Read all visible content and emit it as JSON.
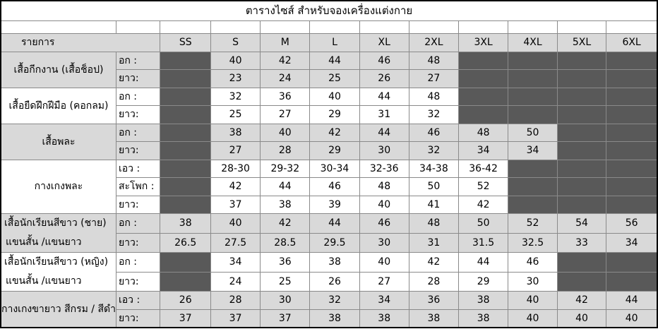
{
  "title": "ตารางไซส์ สำหรับจองเครื่องแต่งกาย",
  "header": {
    "item_label": "รายการ",
    "sizes": [
      "SS",
      "S",
      "M",
      "L",
      "XL",
      "2XL",
      "3XL",
      "4XL",
      "5XL",
      "6XL"
    ]
  },
  "groups": [
    {
      "name": "เสื้อกีกงาน (เสื้อช็อป)",
      "rows": [
        {
          "label": "อก :",
          "values": [
            null,
            "40",
            "42",
            "44",
            "46",
            "48",
            null,
            null,
            null,
            null
          ]
        },
        {
          "label": "ยาว:",
          "values": [
            null,
            "23",
            "24",
            "25",
            "26",
            "27",
            null,
            null,
            null,
            null
          ]
        }
      ]
    },
    {
      "name": "เสื้อยืดฝึกฝีมือ (คอกลม)",
      "rows": [
        {
          "label": "อก :",
          "values": [
            null,
            "32",
            "36",
            "40",
            "44",
            "48",
            null,
            null,
            null,
            null
          ]
        },
        {
          "label": "ยาว:",
          "values": [
            null,
            "25",
            "27",
            "29",
            "31",
            "32",
            null,
            null,
            null,
            null
          ]
        }
      ]
    },
    {
      "name": "เสื้อพละ",
      "rows": [
        {
          "label": "อก :",
          "values": [
            null,
            "38",
            "40",
            "42",
            "44",
            "46",
            "48",
            "50",
            null,
            null
          ]
        },
        {
          "label": "ยาว:",
          "values": [
            null,
            "27",
            "28",
            "29",
            "30",
            "32",
            "34",
            "34",
            null,
            null
          ]
        }
      ]
    },
    {
      "name": "กางเกงพละ",
      "rows": [
        {
          "label": "เอว :",
          "values": [
            null,
            "28-30",
            "29-32",
            "30-34",
            "32-36",
            "34-38",
            "36-42",
            null,
            null,
            null
          ]
        },
        {
          "label": "สะโพก :",
          "values": [
            null,
            "42",
            "44",
            "46",
            "48",
            "50",
            "52",
            null,
            null,
            null
          ]
        },
        {
          "label": "ยาว:",
          "values": [
            null,
            "37",
            "38",
            "39",
            "40",
            "41",
            "42",
            null,
            null,
            null
          ]
        }
      ]
    },
    {
      "name_line1": "เสื้อนักเรียนสีขาว (ชาย)",
      "name_line2": "แขนสั้น /แขนยาว",
      "rows": [
        {
          "label": "อก :",
          "values": [
            "38",
            "40",
            "42",
            "44",
            "46",
            "48",
            "50",
            "52",
            "54",
            "56"
          ]
        },
        {
          "label": "ยาว:",
          "values": [
            "26.5",
            "27.5",
            "28.5",
            "29.5",
            "30",
            "31",
            "31.5",
            "32.5",
            "33",
            "34"
          ]
        }
      ]
    },
    {
      "name_line1": "เสื้อนักเรียนสีขาว (หญิง)",
      "name_line2": "แขนสั้น /แขนยาว",
      "rows": [
        {
          "label": "อก :",
          "values": [
            null,
            "34",
            "36",
            "38",
            "40",
            "42",
            "44",
            "46",
            null,
            null
          ]
        },
        {
          "label": "ยาว:",
          "values": [
            null,
            "24",
            "25",
            "26",
            "27",
            "28",
            "29",
            "30",
            null,
            null
          ]
        }
      ]
    },
    {
      "name": "กางเกงขายาว สีกรม / สีดำ",
      "rows": [
        {
          "label": "เอว :",
          "values": [
            "26",
            "28",
            "30",
            "32",
            "34",
            "36",
            "38",
            "40",
            "42",
            "44"
          ]
        },
        {
          "label": "ยาว:",
          "values": [
            "37",
            "37",
            "37",
            "38",
            "38",
            "38",
            "38",
            "40",
            "40",
            "40"
          ]
        }
      ]
    }
  ],
  "colors": {
    "unavailable": "#595959",
    "shaded": "#d9d9d9",
    "plain": "#ffffff"
  }
}
